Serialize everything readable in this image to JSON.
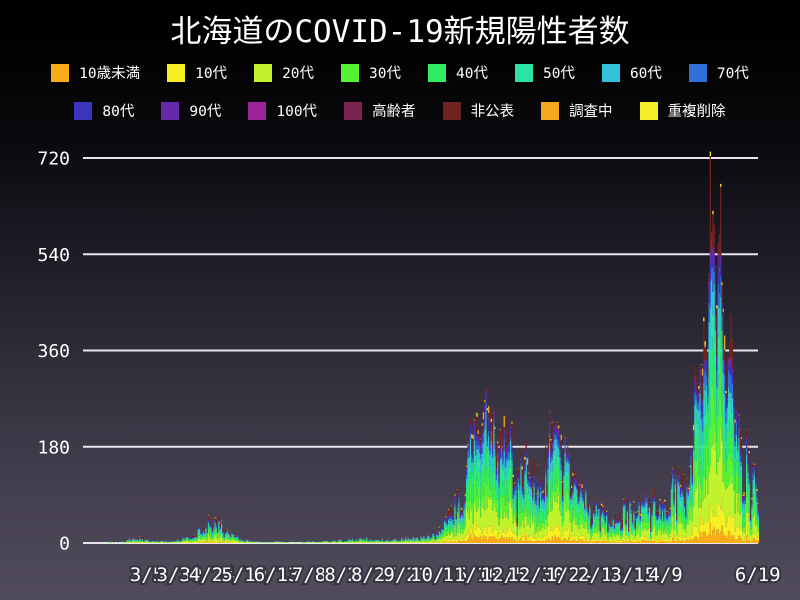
{
  "title": "北海道のCOVID-19新規陽性者数",
  "legend": {
    "row_split": 8
  },
  "chart_data": {
    "type": "area",
    "stacked": true,
    "title": "北海道のCOVID-19新規陽性者数",
    "xlabel": "",
    "ylabel": "",
    "grid": true,
    "legend_position": "top",
    "background": "dark-gradient",
    "grid_color": "#e8e6ec",
    "text_color": "#ffffff",
    "y_axis": {
      "ticks": [
        0,
        180,
        360,
        540,
        720
      ],
      "max": 734
    },
    "x_axis": {
      "total_days": 509,
      "tick_labels": [
        {
          "label": "3/5",
          "day": 37
        },
        {
          "label": "3/30",
          "day": 62
        },
        {
          "label": "4/24",
          "day": 87
        },
        {
          "label": "5/19",
          "day": 112
        },
        {
          "label": "6/13",
          "day": 137
        },
        {
          "label": "7/8",
          "day": 162
        },
        {
          "label": "8/2",
          "day": 187
        },
        {
          "label": "8/27",
          "day": 212
        },
        {
          "label": "9/21",
          "day": 237
        },
        {
          "label": "10/16",
          "day": 262
        },
        {
          "label": "11/10",
          "day": 287
        },
        {
          "label": "12/5",
          "day": 312
        },
        {
          "label": "12/30",
          "day": 337
        },
        {
          "label": "1/24",
          "day": 362
        },
        {
          "label": "2/18",
          "day": 387
        },
        {
          "label": "3/15",
          "day": 412
        },
        {
          "label": "4/9",
          "day": 437
        },
        {
          "label": "6/19",
          "day": 508
        }
      ]
    },
    "series": [
      {
        "name": "10歳未満",
        "color": "#F9AC18",
        "share": 0.045
      },
      {
        "name": "10代",
        "color": "#F7EE23",
        "share": 0.075
      },
      {
        "name": "20代",
        "color": "#C2F22B",
        "share": 0.19
      },
      {
        "name": "30代",
        "color": "#57F136",
        "share": 0.15
      },
      {
        "name": "40代",
        "color": "#2EED62",
        "share": 0.14
      },
      {
        "name": "50代",
        "color": "#2BE3A2",
        "share": 0.12
      },
      {
        "name": "60代",
        "color": "#32C3DB",
        "share": 0.085
      },
      {
        "name": "70代",
        "color": "#2E6FD8",
        "share": 0.06
      },
      {
        "name": "80代",
        "color": "#3B34BC",
        "share": 0.05
      },
      {
        "name": "90代",
        "color": "#6629A9",
        "share": 0.025
      },
      {
        "name": "100代",
        "color": "#9D2398",
        "share": 0.003
      },
      {
        "name": "高齢者",
        "color": "#7C2450",
        "share": 0.004
      },
      {
        "name": "非公表",
        "color": "#6E2222",
        "share": 0.05
      },
      {
        "name": "調査中",
        "color": "#F6A81F",
        "share": 0.008
      },
      {
        "name": "重複削除",
        "color": "#F8EF2A",
        "share": 0.005
      }
    ],
    "daily_total_keypoints": [
      [
        0,
        1
      ],
      [
        10,
        1
      ],
      [
        17,
        2
      ],
      [
        24,
        8
      ],
      [
        29,
        14
      ],
      [
        33,
        8
      ],
      [
        37,
        6
      ],
      [
        45,
        4
      ],
      [
        55,
        3
      ],
      [
        62,
        6
      ],
      [
        70,
        12
      ],
      [
        78,
        25
      ],
      [
        84,
        38
      ],
      [
        87,
        45
      ],
      [
        93,
        34
      ],
      [
        100,
        20
      ],
      [
        107,
        10
      ],
      [
        112,
        6
      ],
      [
        120,
        4
      ],
      [
        130,
        2
      ],
      [
        137,
        3
      ],
      [
        147,
        2
      ],
      [
        155,
        2
      ],
      [
        162,
        3
      ],
      [
        172,
        4
      ],
      [
        180,
        5
      ],
      [
        187,
        6
      ],
      [
        197,
        8
      ],
      [
        205,
        10
      ],
      [
        212,
        8
      ],
      [
        222,
        6
      ],
      [
        230,
        8
      ],
      [
        237,
        10
      ],
      [
        247,
        12
      ],
      [
        255,
        16
      ],
      [
        262,
        22
      ],
      [
        270,
        50
      ],
      [
        275,
        70
      ],
      [
        280,
        96
      ],
      [
        285,
        150
      ],
      [
        287,
        200
      ],
      [
        290,
        240
      ],
      [
        294,
        200
      ],
      [
        297,
        300
      ],
      [
        299,
        245
      ],
      [
        303,
        255
      ],
      [
        306,
        210
      ],
      [
        310,
        180
      ],
      [
        312,
        180
      ],
      [
        317,
        240
      ],
      [
        322,
        120
      ],
      [
        327,
        145
      ],
      [
        332,
        130
      ],
      [
        337,
        110
      ],
      [
        342,
        90
      ],
      [
        346,
        190
      ],
      [
        352,
        240
      ],
      [
        354,
        220
      ],
      [
        359,
        150
      ],
      [
        362,
        135
      ],
      [
        366,
        125
      ],
      [
        373,
        100
      ],
      [
        379,
        70
      ],
      [
        387,
        55
      ],
      [
        394,
        40
      ],
      [
        401,
        70
      ],
      [
        408,
        60
      ],
      [
        412,
        65
      ],
      [
        422,
        75
      ],
      [
        429,
        80
      ],
      [
        436,
        70
      ],
      [
        443,
        110
      ],
      [
        450,
        105
      ],
      [
        457,
        165
      ],
      [
        459,
        325
      ],
      [
        464,
        320
      ],
      [
        466,
        405
      ],
      [
        469,
        330
      ],
      [
        471,
        712
      ],
      [
        473,
        600
      ],
      [
        476,
        490
      ],
      [
        479,
        727
      ],
      [
        480,
        505
      ],
      [
        483,
        300
      ],
      [
        486,
        385
      ],
      [
        487,
        450
      ],
      [
        490,
        250
      ],
      [
        493,
        240
      ],
      [
        497,
        170
      ],
      [
        500,
        155
      ],
      [
        504,
        120
      ],
      [
        508,
        110
      ]
    ]
  }
}
